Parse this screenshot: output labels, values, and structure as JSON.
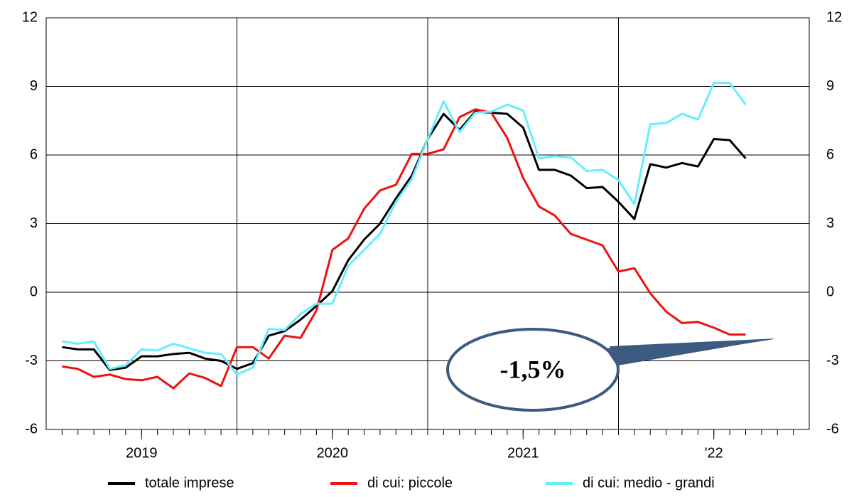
{
  "chart_data": {
    "type": "line",
    "x": [
      1,
      2,
      3,
      4,
      5,
      6,
      7,
      8,
      9,
      10,
      11,
      12,
      13,
      14,
      15,
      16,
      17,
      18,
      19,
      20,
      21,
      22,
      23,
      24,
      25,
      26,
      27,
      28,
      29,
      30,
      31,
      32,
      33,
      34,
      35,
      36,
      37,
      38,
      39,
      40,
      41,
      42,
      43,
      44
    ],
    "xlim": [
      0,
      48
    ],
    "xticks": [
      {
        "value": 6,
        "label": "2019"
      },
      {
        "value": 18,
        "label": "2020"
      },
      {
        "value": 30,
        "label": "2021"
      },
      {
        "value": 42,
        "label": "'22"
      }
    ],
    "xgrid": [
      12,
      24,
      36
    ],
    "xminor_step": 1,
    "ylim": [
      -6,
      12
    ],
    "yticks": [
      -6,
      -3,
      0,
      3,
      6,
      9,
      12
    ],
    "y2lim": [
      -6,
      12
    ],
    "y2ticks": [
      -6,
      -3,
      0,
      3,
      6,
      9,
      12
    ],
    "grid": true,
    "legend": "bottom",
    "series": [
      {
        "name": "totale imprese",
        "color": "#000000",
        "values": [
          -2.4,
          -2.5,
          -2.5,
          -3.4,
          -3.3,
          -2.8,
          -2.8,
          -2.7,
          -2.65,
          -2.9,
          -3.0,
          -3.35,
          -3.1,
          -1.9,
          -1.7,
          -1.2,
          -0.6,
          0.05,
          1.4,
          2.3,
          3.0,
          4.1,
          5.1,
          6.7,
          7.8,
          7.1,
          7.9,
          7.85,
          7.8,
          7.2,
          5.35,
          5.35,
          5.1,
          4.55,
          4.6,
          3.95,
          3.2,
          5.6,
          5.45,
          5.65,
          5.5,
          6.7,
          6.65,
          5.85
        ]
      },
      {
        "name": "di cui: piccole",
        "color": "#ee1111",
        "values": [
          -3.25,
          -3.35,
          -3.7,
          -3.6,
          -3.8,
          -3.85,
          -3.7,
          -4.2,
          -3.55,
          -3.75,
          -4.1,
          -2.4,
          -2.4,
          -2.9,
          -1.9,
          -2.0,
          -0.8,
          1.85,
          2.35,
          3.65,
          4.45,
          4.7,
          6.05,
          6.05,
          6.25,
          7.65,
          8.0,
          7.85,
          6.75,
          5.0,
          3.75,
          3.35,
          2.55,
          2.3,
          2.05,
          0.9,
          1.05,
          -0.05,
          -0.85,
          -1.35,
          -1.3,
          -1.55,
          -1.85,
          -1.85
        ]
      },
      {
        "name": "di cui: medio - grandi",
        "color": "#66eeff",
        "values": [
          -2.15,
          -2.25,
          -2.15,
          -3.35,
          -3.2,
          -2.5,
          -2.55,
          -2.25,
          -2.45,
          -2.65,
          -2.7,
          -3.6,
          -3.3,
          -1.6,
          -1.65,
          -0.95,
          -0.5,
          -0.5,
          1.15,
          1.85,
          2.55,
          3.95,
          4.95,
          6.7,
          8.35,
          7.0,
          7.85,
          7.9,
          8.2,
          7.95,
          5.85,
          5.95,
          5.9,
          5.3,
          5.35,
          4.9,
          3.85,
          7.35,
          7.4,
          7.8,
          7.55,
          9.15,
          9.15,
          8.2
        ]
      }
    ],
    "annotations": [
      {
        "text": "-1,5%"
      }
    ]
  }
}
